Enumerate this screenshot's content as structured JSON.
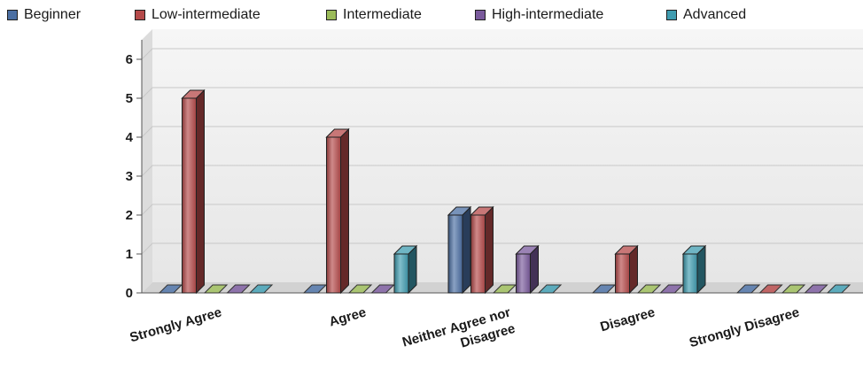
{
  "legend": [
    {
      "label": "Beginner",
      "color": "#4b6fa3"
    },
    {
      "label": "Low-intermediate",
      "color": "#b54a4a"
    },
    {
      "label": "Intermediate",
      "color": "#9bbb59"
    },
    {
      "label": "High-intermediate",
      "color": "#7a5a9c"
    },
    {
      "label": "Advanced",
      "color": "#3f9cb0"
    }
  ],
  "chart_data": {
    "type": "bar",
    "categories": [
      [
        "Strongly Agree"
      ],
      [
        "Agree"
      ],
      [
        "Neither Agree nor",
        "Disagree"
      ],
      [
        "Disagree"
      ],
      [
        "Strongly Disagree"
      ]
    ],
    "series": [
      {
        "name": "Beginner",
        "values": [
          0,
          0,
          2,
          0,
          0
        ]
      },
      {
        "name": "Low-intermediate",
        "values": [
          5,
          4,
          2,
          1,
          0
        ]
      },
      {
        "name": "Intermediate",
        "values": [
          0,
          0,
          0,
          0,
          0
        ]
      },
      {
        "name": "High-intermediate",
        "values": [
          0,
          0,
          1,
          0,
          0
        ]
      },
      {
        "name": "Advanced",
        "values": [
          0,
          1,
          0,
          1,
          0
        ]
      }
    ],
    "y_ticks": [
      "0",
      "1",
      "2",
      "3",
      "4",
      "5",
      "6"
    ],
    "ylim": [
      0,
      6.5
    ],
    "grid": true,
    "style": "3d",
    "legend_position": "top"
  }
}
